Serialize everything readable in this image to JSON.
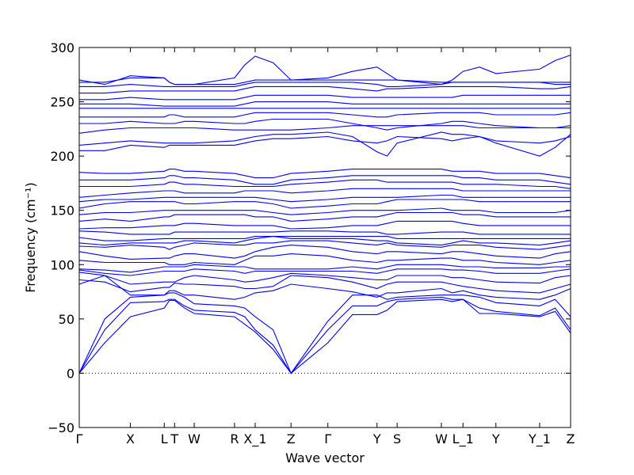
{
  "chart_data": {
    "type": "line",
    "xlabel": "Wave vector",
    "ylabel": "Frequency (cm⁻¹)",
    "ylim": [
      -50,
      300
    ],
    "yticks": [
      -50,
      0,
      50,
      100,
      150,
      200,
      250,
      300
    ],
    "grid": false,
    "line_color": "#0000ff",
    "zero_line": true,
    "high_symmetry_points": [
      {
        "label": "Γ",
        "k": 0.0
      },
      {
        "label": "X",
        "k": 0.104
      },
      {
        "label": "L",
        "k": 0.173
      },
      {
        "label": "T",
        "k": 0.194
      },
      {
        "label": "W",
        "k": 0.234
      },
      {
        "label": "R",
        "k": 0.316
      },
      {
        "label": "X_1",
        "k": 0.358
      },
      {
        "label": "Z",
        "k": 0.431
      },
      {
        "label": "Γ",
        "k": 0.506
      },
      {
        "label": "Y",
        "k": 0.606
      },
      {
        "label": "S",
        "k": 0.647
      },
      {
        "label": "W",
        "k": 0.737
      },
      {
        "label": "L_1",
        "k": 0.781
      },
      {
        "label": "Y",
        "k": 0.848
      },
      {
        "label": "Y_1",
        "k": 0.937
      },
      {
        "label": "Z",
        "k": 1.0
      }
    ],
    "series": [
      {
        "values": [
          0,
          28,
          52,
          60,
          67,
          67,
          60,
          55,
          52,
          45,
          38,
          22,
          0,
          28,
          54,
          54,
          58,
          66,
          68,
          66,
          68,
          55,
          55,
          52,
          57,
          37
        ]
      },
      {
        "values": [
          0,
          40,
          65,
          66,
          68,
          68,
          62,
          58,
          56,
          52,
          40,
          26,
          0,
          40,
          62,
          62,
          66,
          68,
          70,
          68,
          68,
          60,
          57,
          53,
          60,
          40
        ]
      },
      {
        "values": [
          0,
          50,
          70,
          72,
          74,
          74,
          70,
          64,
          62,
          60,
          52,
          40,
          0,
          48,
          72,
          72,
          68,
          70,
          72,
          72,
          72,
          70,
          65,
          62,
          68,
          52
        ]
      },
      {
        "values": [
          82,
          90,
          72,
          72,
          76,
          76,
          72,
          72,
          68,
          70,
          74,
          76,
          82,
          78,
          75,
          70,
          74,
          74,
          78,
          74,
          76,
          72,
          70,
          68,
          72,
          78
        ]
      },
      {
        "values": [
          86,
          84,
          75,
          79,
          79,
          83,
          82,
          82,
          80,
          78,
          78,
          80,
          90,
          88,
          84,
          78,
          82,
          84,
          84,
          82,
          80,
          78,
          76,
          74,
          78,
          82
        ]
      },
      {
        "values": [
          93,
          90,
          82,
          84,
          84,
          84,
          88,
          90,
          86,
          84,
          85,
          88,
          92,
          90,
          88,
          86,
          86,
          90,
          90,
          88,
          88,
          86,
          84,
          83,
          88,
          90
        ]
      },
      {
        "values": [
          95,
          92,
          90,
          94,
          94,
          94,
          94,
          96,
          94,
          92,
          94,
          94,
          94,
          94,
          94,
          92,
          94,
          96,
          96,
          95,
          95,
          94,
          92,
          92,
          94,
          96
        ]
      },
      {
        "values": [
          96,
          95,
          93,
          98,
          98,
          98,
          98,
          100,
          98,
          98,
          96,
          96,
          96,
          96,
          98,
          96,
          98,
          100,
          100,
          99,
          98,
          98,
          97,
          97,
          98,
          98
        ]
      },
      {
        "values": [
          104,
          102,
          102,
          102,
          100,
          100,
          100,
          102,
          100,
          104,
          108,
          108,
          110,
          108,
          104,
          102,
          104,
          104,
          106,
          106,
          104,
          104,
          102,
          100,
          102,
          104
        ]
      },
      {
        "values": [
          112,
          108,
          105,
          106,
          106,
          108,
          110,
          110,
          106,
          108,
          112,
          116,
          118,
          116,
          112,
          110,
          112,
          112,
          110,
          112,
          112,
          110,
          108,
          106,
          110,
          112
        ]
      },
      {
        "values": [
          117,
          116,
          118,
          116,
          114,
          116,
          118,
          120,
          118,
          118,
          120,
          120,
          122,
          122,
          120,
          118,
          120,
          118,
          116,
          118,
          118,
          118,
          116,
          114,
          116,
          118
        ]
      },
      {
        "values": [
          120,
          118,
          120,
          120,
          120,
          120,
          122,
          122,
          120,
          122,
          124,
          126,
          124,
          124,
          124,
          122,
          122,
          120,
          118,
          120,
          122,
          120,
          120,
          118,
          120,
          122
        ]
      },
      {
        "values": [
          125,
          122,
          122,
          124,
          124,
          124,
          124,
          124,
          124,
          124,
          126,
          126,
          126,
          126,
          126,
          126,
          126,
          124,
          124,
          124,
          124,
          124,
          124,
          124,
          124,
          124
        ]
      },
      {
        "values": [
          131,
          130,
          128,
          128,
          128,
          130,
          130,
          130,
          130,
          130,
          130,
          130,
          131,
          131,
          130,
          130,
          128,
          128,
          130,
          130,
          130,
          128,
          128,
          128,
          128,
          128
        ]
      },
      {
        "values": [
          133,
          134,
          134,
          136,
          136,
          136,
          138,
          138,
          136,
          136,
          136,
          136,
          133,
          134,
          136,
          136,
          138,
          140,
          140,
          140,
          138,
          136,
          136,
          136,
          136,
          136
        ]
      },
      {
        "values": [
          140,
          142,
          140,
          144,
          144,
          146,
          146,
          146,
          146,
          146,
          144,
          144,
          140,
          142,
          144,
          144,
          146,
          148,
          148,
          148,
          146,
          146,
          144,
          144,
          144,
          144
        ]
      },
      {
        "values": [
          146,
          148,
          148,
          150,
          150,
          150,
          150,
          150,
          150,
          150,
          150,
          148,
          146,
          148,
          150,
          150,
          150,
          150,
          152,
          150,
          150,
          150,
          148,
          148,
          148,
          150
        ]
      },
      {
        "values": [
          152,
          156,
          158,
          158,
          158,
          158,
          156,
          156,
          158,
          158,
          158,
          156,
          152,
          154,
          156,
          156,
          158,
          160,
          160,
          160,
          160,
          158,
          158,
          158,
          158,
          158
        ]
      },
      {
        "values": [
          158,
          160,
          160,
          162,
          162,
          162,
          162,
          162,
          162,
          162,
          162,
          160,
          158,
          160,
          162,
          162,
          162,
          162,
          164,
          164,
          162,
          162,
          162,
          162,
          162,
          162
        ]
      },
      {
        "values": [
          162,
          164,
          166,
          168,
          168,
          168,
          166,
          166,
          166,
          168,
          168,
          168,
          166,
          168,
          170,
          170,
          170,
          170,
          170,
          170,
          168,
          168,
          168,
          168,
          168,
          168
        ]
      },
      {
        "values": [
          172,
          172,
          172,
          174,
          176,
          176,
          174,
          174,
          172,
          172,
          172,
          172,
          174,
          176,
          178,
          178,
          176,
          176,
          176,
          176,
          174,
          174,
          174,
          172,
          172,
          170
        ]
      },
      {
        "values": [
          178,
          178,
          178,
          180,
          182,
          182,
          180,
          180,
          178,
          176,
          174,
          174,
          178,
          180,
          182,
          182,
          182,
          182,
          182,
          182,
          180,
          180,
          178,
          178,
          176,
          174
        ]
      },
      {
        "values": [
          185,
          184,
          184,
          186,
          188,
          188,
          186,
          186,
          184,
          182,
          180,
          180,
          184,
          186,
          188,
          188,
          188,
          188,
          188,
          186,
          186,
          186,
          184,
          184,
          182,
          180
        ]
      },
      {
        "values": [
          205,
          205,
          210,
          208,
          210,
          210,
          210,
          210,
          210,
          212,
          214,
          216,
          216,
          218,
          214,
          212,
          214,
          218,
          216,
          214,
          216,
          218,
          214,
          212,
          214,
          218
        ]
      },
      {
        "values": [
          210,
          212,
          214,
          212,
          212,
          212,
          212,
          212,
          214,
          216,
          218,
          220,
          220,
          222,
          218,
          204,
          200,
          212,
          222,
          220,
          220,
          218,
          212,
          200,
          208,
          220
        ]
      },
      {
        "values": [
          221,
          224,
          226,
          226,
          226,
          226,
          226,
          226,
          224,
          224,
          224,
          224,
          224,
          226,
          228,
          228,
          228,
          228,
          228,
          228,
          228,
          226,
          226,
          226,
          226,
          226
        ]
      },
      {
        "values": [
          230,
          230,
          232,
          230,
          230,
          230,
          232,
          232,
          230,
          230,
          232,
          234,
          234,
          234,
          230,
          226,
          224,
          226,
          230,
          232,
          232,
          230,
          228,
          226,
          226,
          228
        ]
      },
      {
        "values": [
          236,
          236,
          236,
          236,
          238,
          238,
          236,
          236,
          236,
          238,
          240,
          240,
          240,
          240,
          238,
          236,
          236,
          238,
          240,
          240,
          240,
          240,
          238,
          238,
          238,
          240
        ]
      },
      {
        "values": [
          244,
          244,
          244,
          244,
          244,
          244,
          244,
          244,
          244,
          244,
          244,
          244,
          244,
          244,
          244,
          244,
          244,
          244,
          244,
          244,
          244,
          244,
          244,
          244,
          244,
          244
        ]
      },
      {
        "values": [
          248,
          248,
          248,
          246,
          246,
          246,
          246,
          246,
          246,
          248,
          250,
          250,
          250,
          250,
          248,
          248,
          248,
          248,
          248,
          248,
          248,
          248,
          248,
          248,
          248,
          248
        ]
      },
      {
        "values": [
          252,
          252,
          254,
          252,
          252,
          252,
          252,
          252,
          252,
          254,
          256,
          256,
          256,
          256,
          254,
          254,
          254,
          254,
          254,
          254,
          256,
          256,
          256,
          256,
          256,
          256
        ]
      },
      {
        "values": [
          258,
          258,
          260,
          260,
          260,
          260,
          260,
          260,
          260,
          262,
          264,
          264,
          264,
          264,
          262,
          260,
          262,
          262,
          264,
          264,
          264,
          264,
          264,
          262,
          262,
          264
        ]
      },
      {
        "values": [
          264,
          264,
          266,
          264,
          264,
          264,
          264,
          264,
          264,
          266,
          268,
          268,
          268,
          268,
          268,
          266,
          264,
          264,
          266,
          268,
          268,
          268,
          268,
          268,
          266,
          266
        ]
      },
      {
        "values": [
          268,
          268,
          272,
          272,
          268,
          266,
          266,
          266,
          266,
          268,
          270,
          270,
          270,
          270,
          270,
          270,
          270,
          270,
          268,
          268,
          268,
          268,
          268,
          268,
          268,
          268
        ]
      },
      {
        "values": [
          270,
          266,
          274,
          272,
          268,
          266,
          266,
          266,
          272,
          284,
          292,
          286,
          270,
          272,
          278,
          282,
          276,
          270,
          266,
          270,
          278,
          282,
          276,
          280,
          288,
          293
        ]
      }
    ]
  }
}
